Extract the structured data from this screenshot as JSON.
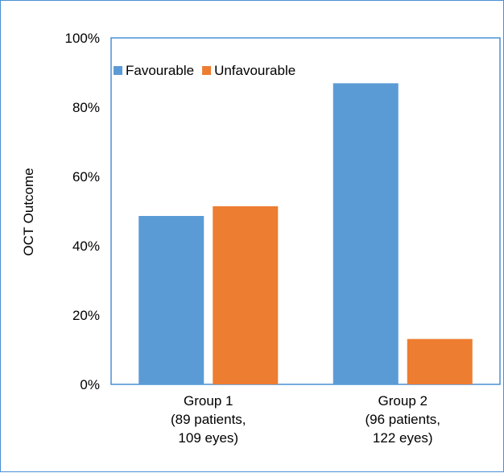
{
  "chart_data": {
    "type": "bar",
    "title": "",
    "xlabel": "",
    "ylabel": "OCT Outcome",
    "ylim": [
      0,
      100
    ],
    "yticks": [
      "0%",
      "20%",
      "40%",
      "60%",
      "80%",
      "100%"
    ],
    "categories": [
      [
        "Group 1",
        "(89 patients,",
        "109 eyes)"
      ],
      [
        "Group 2",
        "(96 patients,",
        "122 eyes)"
      ]
    ],
    "series": [
      {
        "name": "Favourable",
        "color": "#5b9bd5",
        "values": [
          48.6,
          86.9
        ]
      },
      {
        "name": "Unfavourable",
        "color": "#ed7d31",
        "values": [
          51.4,
          13.1
        ]
      }
    ],
    "legend": "top-left",
    "grid": false
  }
}
